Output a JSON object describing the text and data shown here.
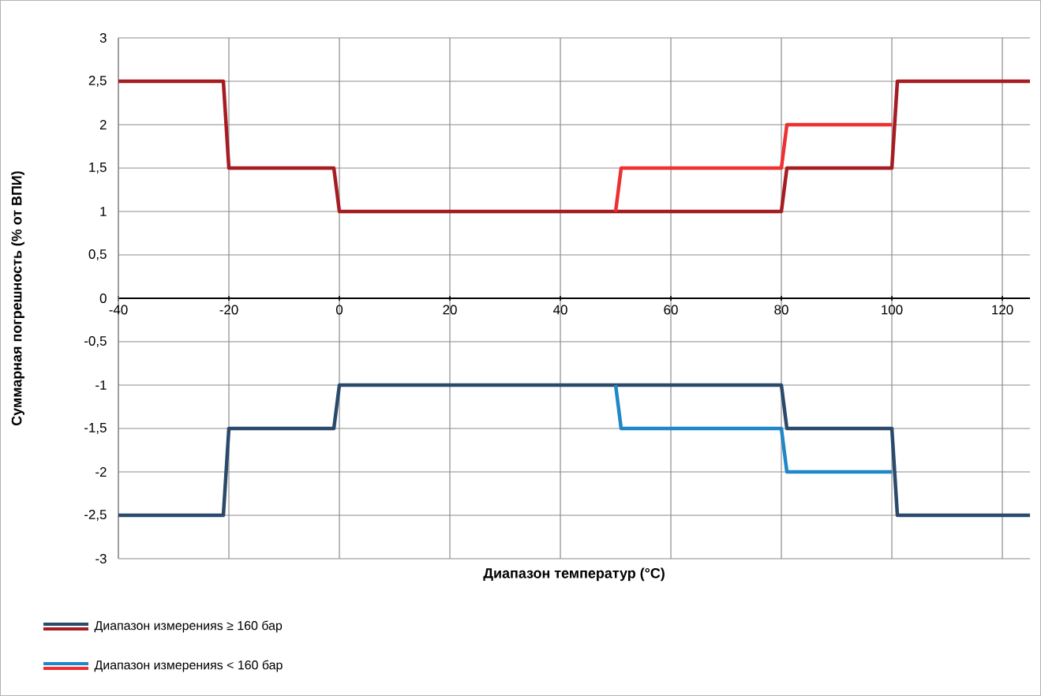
{
  "chart_data": {
    "type": "line",
    "xlabel": "Диапазон температур (°C)",
    "ylabel": "Суммарная погрешность (% от ВПИ)",
    "series": [
      {
        "name": "Диапазон измеренияs ≥ 160 бар",
        "color": "#2b4a6b",
        "x": [
          -40,
          -21,
          -20,
          -1,
          0,
          80,
          81,
          100,
          101,
          125
        ],
        "values": [
          -2.5,
          -2.5,
          -1.5,
          -1.5,
          -1,
          -1,
          -1.5,
          -1.5,
          -2.5,
          -2.5
        ]
      },
      {
        "color": "#a51c22",
        "x": [
          -40,
          -21,
          -20,
          -1,
          0,
          80,
          81,
          100,
          101,
          125
        ],
        "values": [
          2.5,
          2.5,
          1.5,
          1.5,
          1,
          1,
          1.5,
          1.5,
          2.5,
          2.5
        ]
      },
      {
        "name": "Диапазон измеренияs < 160 бар",
        "color": "#1f86c8",
        "x": [
          50,
          51,
          80,
          81,
          100
        ],
        "values": [
          -1,
          -1.5,
          -1.5,
          -2,
          -2
        ]
      },
      {
        "color": "#ee3030",
        "x": [
          50,
          51,
          80,
          81,
          100
        ],
        "values": [
          1,
          1.5,
          1.5,
          2,
          2
        ]
      }
    ],
    "xlim": [
      -40,
      125
    ],
    "xticks": [
      -40,
      -20,
      0,
      20,
      40,
      60,
      80,
      100,
      120
    ],
    "ylim": [
      -3,
      3
    ],
    "yticks": [
      {
        "value": -3,
        "label": "-3"
      },
      {
        "value": -2.5,
        "label": "-2,5"
      },
      {
        "value": -2,
        "label": "-2"
      },
      {
        "value": -1.5,
        "label": "-1,5"
      },
      {
        "value": -1,
        "label": "-1"
      },
      {
        "value": -0.5,
        "label": "-0,5"
      },
      {
        "value": 0,
        "label": "0"
      },
      {
        "value": 0.5,
        "label": "0,5"
      },
      {
        "value": 1,
        "label": "1"
      },
      {
        "value": 1.5,
        "label": "1,5"
      },
      {
        "value": 2,
        "label": "2"
      },
      {
        "value": 2.5,
        "label": "2,5"
      },
      {
        "value": 3,
        "label": "3"
      }
    ],
    "grid": true,
    "legend": "bottom",
    "marker": "none",
    "line_style": "solid"
  }
}
